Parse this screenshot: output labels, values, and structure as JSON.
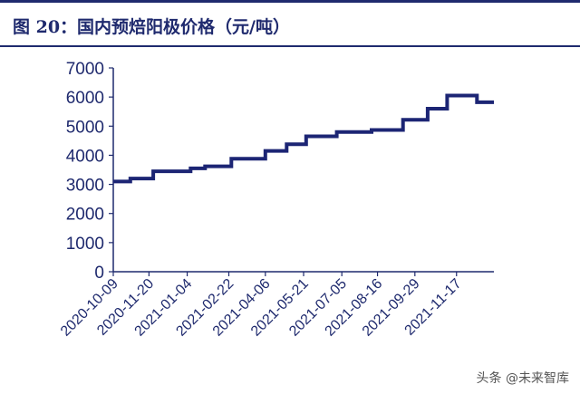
{
  "title": "图 20：国内预焙阳极价格（元/吨）",
  "watermark": "头条 @未来智库",
  "colors": {
    "line": "#1c2574",
    "text": "#1f2a6e",
    "border": "#1f2a6e"
  },
  "chart_data": {
    "type": "line",
    "title": "图 20：国内预焙阳极价格（元/吨）",
    "xlabel": "",
    "ylabel": "",
    "ylim": [
      0,
      7000
    ],
    "yticks": [
      0,
      1000,
      2000,
      3000,
      4000,
      5000,
      6000,
      7000
    ],
    "xlim": [
      "2020-10-09",
      "2021-12-31"
    ],
    "xticks": [
      "2020-10-09",
      "2020-11-20",
      "2021-01-04",
      "2021-02-22",
      "2021-04-06",
      "2021-05-21",
      "2021-07-05",
      "2021-08-16",
      "2021-09-29",
      "2021-11-17"
    ],
    "grid": false,
    "legend": "none",
    "series": [
      {
        "name": "",
        "step": true,
        "points": [
          [
            "2020-10-09",
            3100
          ],
          [
            "2020-10-29",
            3200
          ],
          [
            "2020-11-25",
            3450
          ],
          [
            "2021-01-08",
            3550
          ],
          [
            "2021-01-25",
            3620
          ],
          [
            "2021-02-25",
            3880
          ],
          [
            "2021-04-06",
            4150
          ],
          [
            "2021-05-01",
            4380
          ],
          [
            "2021-05-24",
            4650
          ],
          [
            "2021-06-29",
            4800
          ],
          [
            "2021-08-09",
            4870
          ],
          [
            "2021-09-15",
            5220
          ],
          [
            "2021-10-14",
            5600
          ],
          [
            "2021-11-06",
            6050
          ],
          [
            "2021-12-11",
            5820
          ],
          [
            "2021-12-31",
            5820
          ]
        ]
      }
    ]
  }
}
